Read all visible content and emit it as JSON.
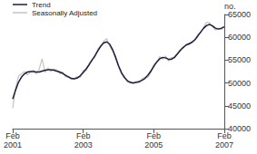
{
  "chart_data": {
    "type": "line",
    "ylabel": "no.",
    "categories": [
      "Feb\n2001",
      null,
      null,
      null,
      null,
      null,
      null,
      null,
      null,
      null,
      null,
      null,
      null,
      null,
      null,
      null,
      null,
      null,
      null,
      null,
      null,
      null,
      null,
      null,
      "Feb\n2003",
      null,
      null,
      null,
      null,
      null,
      null,
      null,
      null,
      null,
      null,
      null,
      null,
      null,
      null,
      null,
      null,
      null,
      null,
      null,
      null,
      null,
      null,
      null,
      "Feb\n2005",
      null,
      null,
      null,
      null,
      null,
      null,
      null,
      null,
      null,
      null,
      null,
      null,
      null,
      null,
      null,
      null,
      null,
      null,
      null,
      null,
      null,
      null,
      null,
      "Feb\n2007"
    ],
    "series": [
      {
        "name": "Trend",
        "color": "#1c1c3c",
        "values": [
          46500,
          48500,
          50200,
          51300,
          52000,
          52400,
          52500,
          52500,
          52400,
          52400,
          52600,
          52800,
          52900,
          52900,
          52800,
          52600,
          52400,
          52100,
          51700,
          51300,
          51000,
          50900,
          51100,
          51600,
          52300,
          53100,
          54000,
          55000,
          56000,
          57100,
          58100,
          58800,
          59000,
          58500,
          57300,
          55600,
          53800,
          52300,
          51200,
          50500,
          50100,
          50000,
          50100,
          50300,
          50600,
          51000,
          51700,
          52600,
          53600,
          54600,
          55300,
          55600,
          55500,
          55200,
          55200,
          55600,
          56300,
          57100,
          57800,
          58300,
          58600,
          58900,
          59500,
          60300,
          61200,
          62000,
          62600,
          62800,
          62500,
          62000,
          61800,
          62000,
          62300
        ]
      },
      {
        "name": "Seasonally Adjusted",
        "color": "#c4c4c4",
        "values": [
          44500,
          49000,
          51500,
          52000,
          52500,
          51800,
          52300,
          52800,
          52000,
          53000,
          55300,
          52300,
          53300,
          52500,
          53100,
          52900,
          52000,
          52400,
          51300,
          51500,
          50700,
          51000,
          51400,
          51200,
          52800,
          52700,
          54300,
          55200,
          55600,
          57500,
          58000,
          59200,
          59700,
          58000,
          57000,
          55900,
          53400,
          52000,
          51500,
          50200,
          50300,
          49800,
          50400,
          50000,
          50900,
          51300,
          51200,
          52300,
          54100,
          54500,
          55800,
          55200,
          55900,
          54800,
          55600,
          55400,
          56600,
          57300,
          57600,
          58500,
          58300,
          59200,
          59300,
          60700,
          61000,
          62300,
          63300,
          63200,
          62300,
          61600,
          62000,
          61700,
          62500
        ]
      }
    ],
    "ylim": [
      40000,
      65000
    ],
    "yticks": [
      40000,
      45000,
      50000,
      55000,
      60000,
      65000
    ],
    "grid": false,
    "legend": "top-left"
  }
}
